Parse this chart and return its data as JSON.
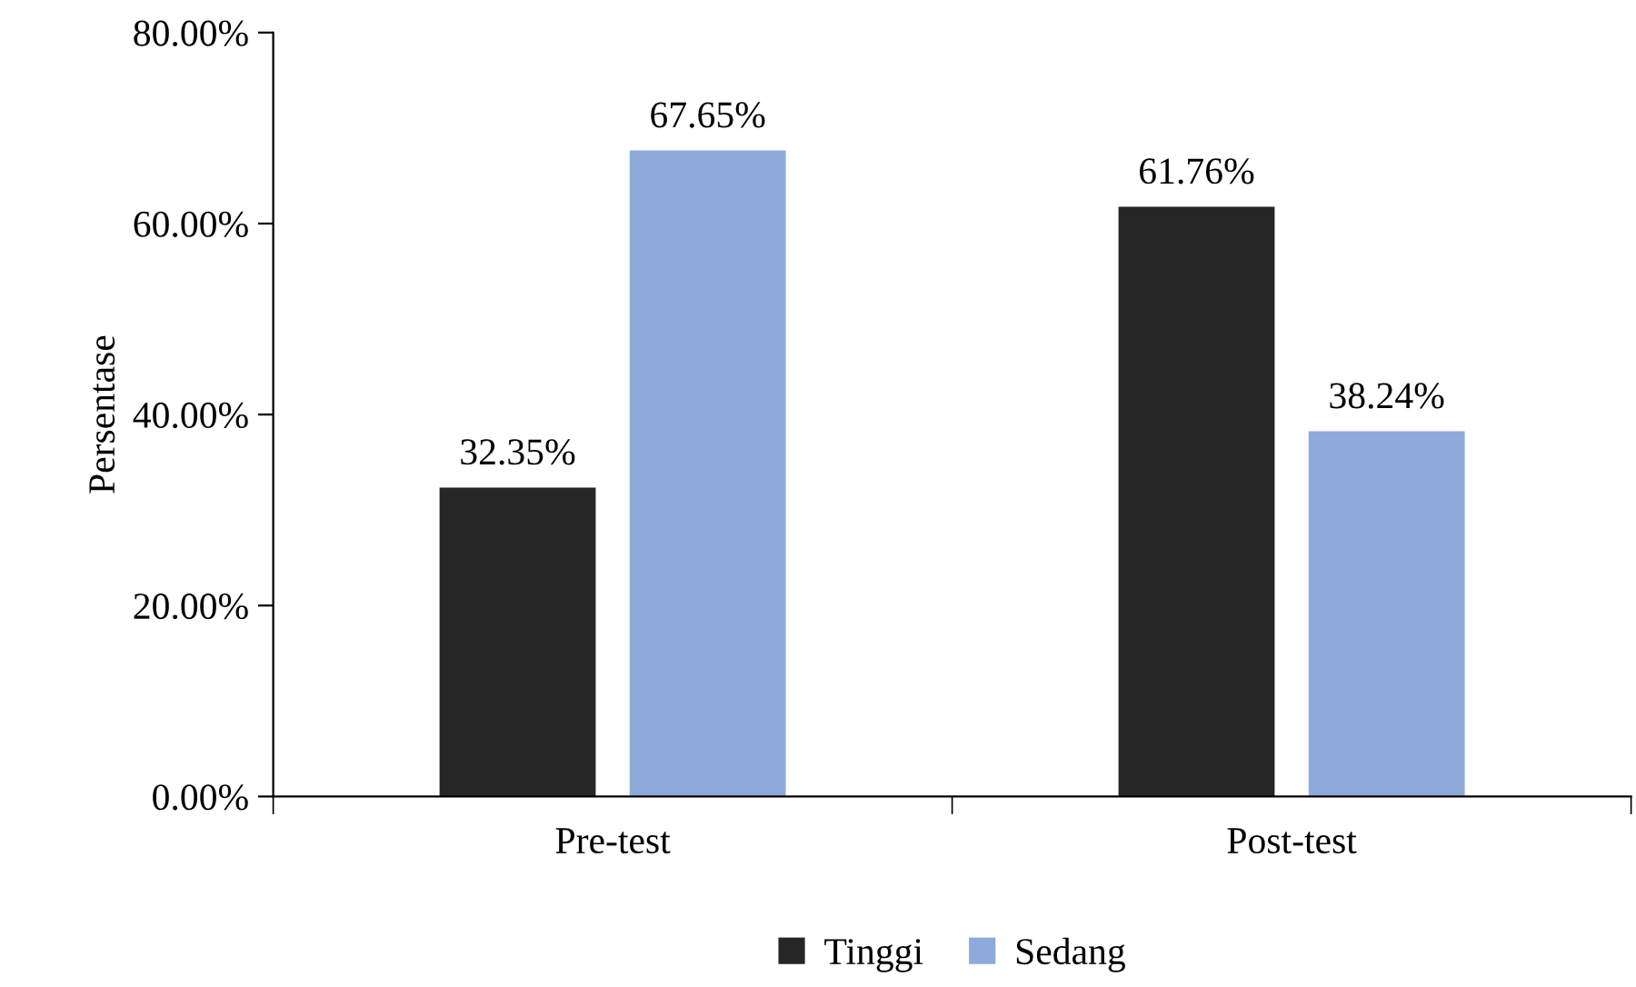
{
  "chart_data": {
    "type": "bar",
    "categories": [
      "Pre-test",
      "Post-test"
    ],
    "ylabel": "Persentase",
    "series": [
      {
        "name": "Tinggi",
        "color": "#262626",
        "values": [
          32.35,
          61.76
        ],
        "value_labels": [
          "32.35%",
          "61.76%"
        ]
      },
      {
        "name": "Sedang",
        "color": "#8eaadb",
        "values": [
          67.65,
          38.24
        ],
        "value_labels": [
          "67.65%",
          "38.24%"
        ]
      }
    ],
    "ylim": [
      0,
      80
    ],
    "yticks": [
      {
        "value": 0,
        "label": "0.00%"
      },
      {
        "value": 20,
        "label": "20.00%"
      },
      {
        "value": 40,
        "label": "40.00%"
      },
      {
        "value": 60,
        "label": "60.00%"
      },
      {
        "value": 80,
        "label": "80.00%"
      }
    ],
    "grid": false,
    "legend": "bottom"
  }
}
